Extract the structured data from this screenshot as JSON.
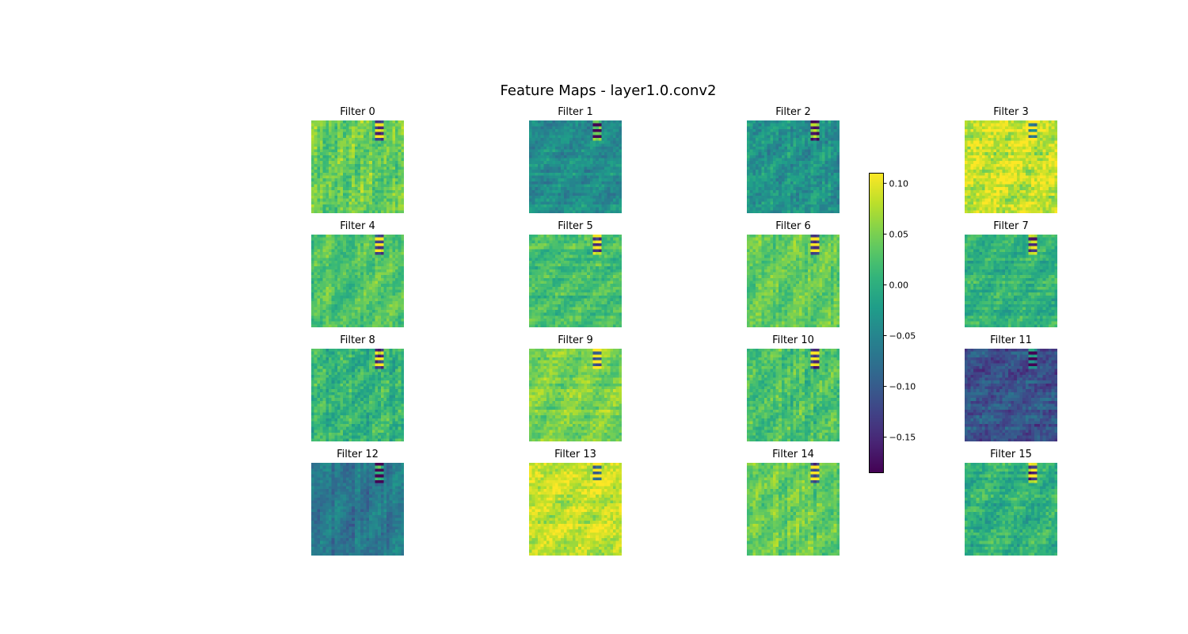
{
  "figure": {
    "title": "Feature Maps - layer1.0.conv2"
  },
  "chart_data": {
    "type": "heatmap",
    "title": "Feature Maps - layer1.0.conv2",
    "colormap": "viridis",
    "grid": {
      "rows": 4,
      "cols": 4,
      "map_resolution": 32
    },
    "color_range": [
      -0.185,
      0.11
    ],
    "colorbar": {
      "ticks": [
        0.1,
        0.05,
        0.0,
        -0.05,
        -0.1,
        -0.15
      ],
      "tick_labels": [
        "0.10",
        "0.05",
        "0.00",
        "−0.05",
        "−0.10",
        "−0.15"
      ]
    },
    "panels": [
      {
        "title": "Filter 0",
        "mean_value": 0.04
      },
      {
        "title": "Filter 1",
        "mean_value": -0.04
      },
      {
        "title": "Filter 2",
        "mean_value": -0.03
      },
      {
        "title": "Filter 3",
        "mean_value": 0.085
      },
      {
        "title": "Filter 4",
        "mean_value": 0.03
      },
      {
        "title": "Filter 5",
        "mean_value": 0.02
      },
      {
        "title": "Filter 6",
        "mean_value": 0.035
      },
      {
        "title": "Filter 7",
        "mean_value": 0.005
      },
      {
        "title": "Filter 8",
        "mean_value": 0.01
      },
      {
        "title": "Filter 9",
        "mean_value": 0.05
      },
      {
        "title": "Filter 10",
        "mean_value": 0.025
      },
      {
        "title": "Filter 11",
        "mean_value": -0.11
      },
      {
        "title": "Filter 12",
        "mean_value": -0.07
      },
      {
        "title": "Filter 13",
        "mean_value": 0.085
      },
      {
        "title": "Filter 14",
        "mean_value": 0.04
      },
      {
        "title": "Filter 15",
        "mean_value": 0.005
      }
    ]
  }
}
